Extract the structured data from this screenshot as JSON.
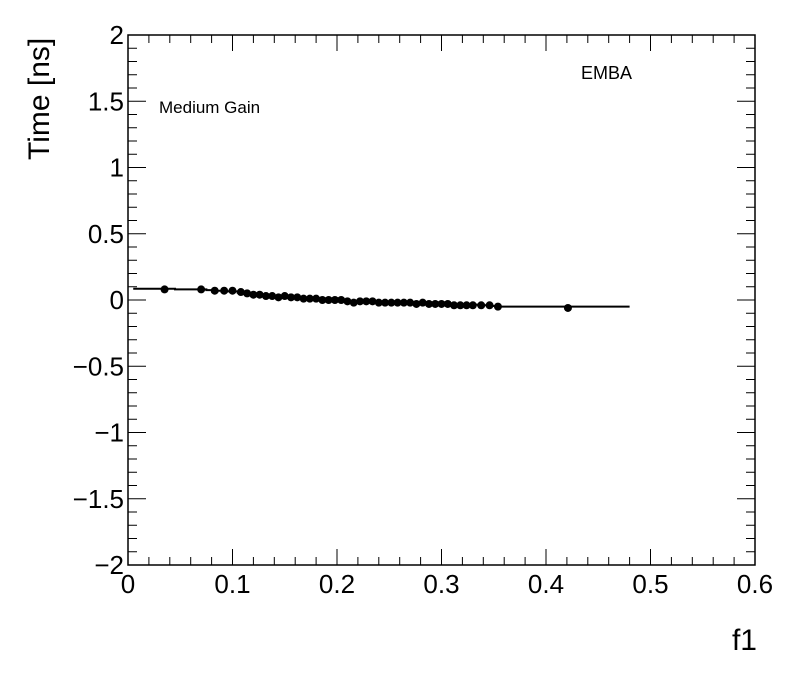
{
  "chart_data": {
    "type": "scatter",
    "title": "",
    "xlabel": "f1",
    "ylabel": "Time [ns]",
    "xlim": [
      0,
      0.6
    ],
    "ylim": [
      -2,
      2
    ],
    "x_ticks": [
      0,
      0.1,
      0.2,
      0.3,
      0.4,
      0.5,
      0.6
    ],
    "x_tick_labels": [
      "0",
      "0.1",
      "0.2",
      "0.3",
      "0.4",
      "0.5",
      "0.6"
    ],
    "y_ticks": [
      -2,
      -1.5,
      -1,
      -0.5,
      0,
      0.5,
      1,
      1.5,
      2
    ],
    "y_tick_labels": [
      "−2",
      "−1.5",
      "−1",
      "−0.5",
      "0",
      "0.5",
      "1",
      "1.5",
      "2"
    ],
    "annotations": {
      "gain": "Medium Gain",
      "partition": "EMBA"
    },
    "grid": false,
    "series": [
      {
        "kind": "points",
        "x": [
          0.035,
          0.07,
          0.083,
          0.092,
          0.1,
          0.108,
          0.114,
          0.12,
          0.126,
          0.132,
          0.138,
          0.144,
          0.15,
          0.156,
          0.162,
          0.168,
          0.174,
          0.18,
          0.186,
          0.192,
          0.198,
          0.204,
          0.21,
          0.216,
          0.222,
          0.228,
          0.234,
          0.24,
          0.246,
          0.252,
          0.258,
          0.264,
          0.27,
          0.276,
          0.282,
          0.288,
          0.294,
          0.3,
          0.306,
          0.312,
          0.318,
          0.324,
          0.33,
          0.338,
          0.346,
          0.354,
          0.421
        ],
        "y": [
          0.08,
          0.08,
          0.07,
          0.07,
          0.07,
          0.06,
          0.05,
          0.04,
          0.04,
          0.03,
          0.03,
          0.02,
          0.03,
          0.02,
          0.02,
          0.01,
          0.01,
          0.01,
          0.0,
          0.0,
          0.0,
          0.0,
          -0.01,
          -0.02,
          -0.01,
          -0.01,
          -0.01,
          -0.02,
          -0.02,
          -0.02,
          -0.02,
          -0.02,
          -0.02,
          -0.03,
          -0.02,
          -0.03,
          -0.03,
          -0.03,
          -0.03,
          -0.04,
          -0.04,
          -0.04,
          -0.04,
          -0.04,
          -0.04,
          -0.05,
          -0.06
        ]
      },
      {
        "kind": "step-line",
        "x": [
          0.005,
          0.045,
          0.075,
          0.085,
          0.095,
          0.105,
          0.115,
          0.125,
          0.135,
          0.145,
          0.155,
          0.165,
          0.175,
          0.185,
          0.195,
          0.205,
          0.215,
          0.225,
          0.235,
          0.245,
          0.255,
          0.265,
          0.275,
          0.285,
          0.295,
          0.305,
          0.315,
          0.325,
          0.335,
          0.345,
          0.355,
          0.48
        ],
        "y": [
          0.085,
          0.08,
          0.075,
          0.07,
          0.065,
          0.055,
          0.045,
          0.035,
          0.03,
          0.025,
          0.02,
          0.015,
          0.01,
          0.005,
          0.0,
          -0.005,
          -0.01,
          -0.01,
          -0.015,
          -0.015,
          -0.02,
          -0.02,
          -0.025,
          -0.025,
          -0.03,
          -0.03,
          -0.035,
          -0.035,
          -0.04,
          -0.045,
          -0.05,
          -0.055
        ]
      }
    ]
  }
}
